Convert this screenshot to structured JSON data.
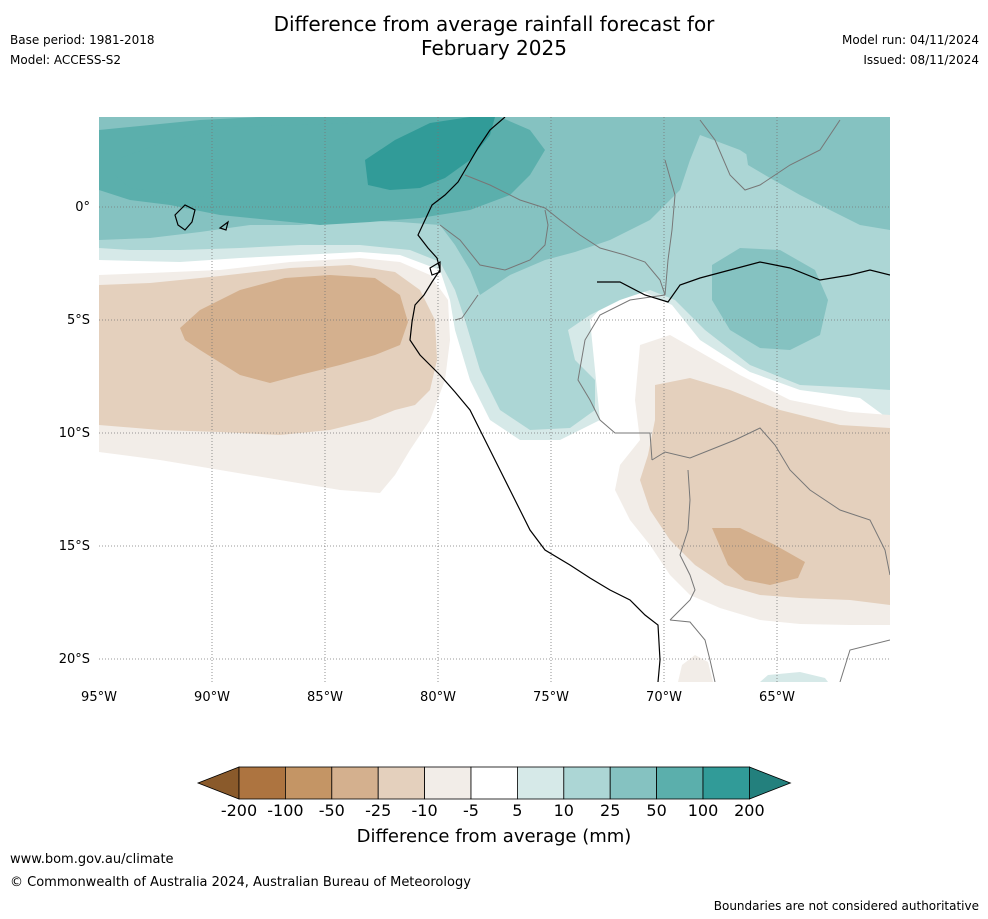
{
  "title_line1": "Difference from average rainfall forecast for",
  "title_line2": "February 2025",
  "meta_left": {
    "base_period": "Base period: 1981-2018",
    "model": "Model: ACCESS-S2"
  },
  "meta_right": {
    "model_run": "Model run: 04/11/2024",
    "issued": "Issued: 08/11/2024"
  },
  "map": {
    "lat_labels": [
      "0°",
      "5°S",
      "10°S",
      "15°S",
      "20°S"
    ],
    "lon_labels": [
      "95°W",
      "90°W",
      "85°W",
      "80°W",
      "75°W",
      "70°W",
      "65°W"
    ],
    "lon_extent": [
      -95,
      -60
    ],
    "lat_extent": [
      4,
      -21
    ]
  },
  "colorbar": {
    "title": "Difference from average (mm)",
    "ticks": [
      "-200",
      "-100",
      "-50",
      "-25",
      "-10",
      "-5",
      "5",
      "10",
      "25",
      "50",
      "100",
      "200"
    ],
    "colors": [
      "#8a5a2b",
      "#ad7440",
      "#c49565",
      "#d4b08e",
      "#e4d0bd",
      "#f2ede8",
      "#ffffff",
      "#d6e9e8",
      "#acd6d5",
      "#85c2c1",
      "#5bafac",
      "#319b98",
      "#23807d"
    ]
  },
  "footer": {
    "url": "www.bom.gov.au/climate",
    "copyright": "© Commonwealth of Australia 2024, Australian Bureau of Meteorology",
    "note": "Boundaries are not considered authoritative"
  }
}
